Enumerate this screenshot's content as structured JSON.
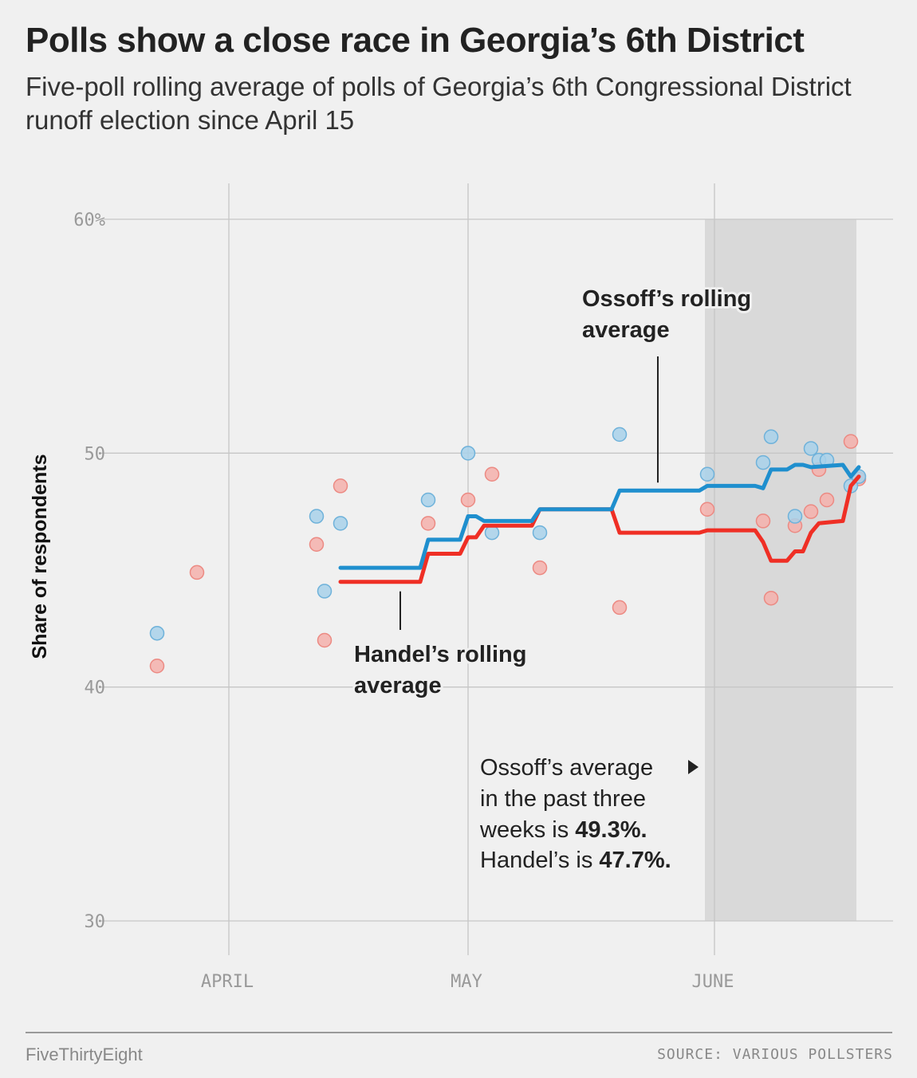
{
  "title": "Polls show a close race in Georgia’s 6th District",
  "subtitle": "Five-poll rolling average of polls of Georgia’s 6th Congressional District runoff election since April 15",
  "footer": {
    "brand": "FiveThirtyEight",
    "source": "SOURCE: VARIOUS POLLSTERS"
  },
  "colors": {
    "ossoff": "#1f8fce",
    "handel": "#ef2f25",
    "ossoff_dot": "#a8d1ea",
    "handel_dot": "#f4b0ab",
    "shade": "#d9d9d9",
    "grid": "#c6c6c6"
  },
  "chart_data": {
    "type": "line",
    "ylabel": "Share of respondents",
    "ylim": [
      30,
      60
    ],
    "y_ticks": [
      {
        "value": 60,
        "label": "60%"
      },
      {
        "value": 50,
        "label": "50"
      },
      {
        "value": 40,
        "label": "40"
      },
      {
        "value": 30,
        "label": "30"
      }
    ],
    "x_ticks": [
      {
        "day": 0,
        "label": "APRIL"
      },
      {
        "day": 30,
        "label": "MAY"
      },
      {
        "day": 61,
        "label": "JUNE"
      }
    ],
    "shaded_region": {
      "from_day": 60,
      "to_day": 79
    },
    "scatter": {
      "ossoff": [
        {
          "day": -9,
          "value": 42.3
        },
        {
          "day": 11,
          "value": 47.3
        },
        {
          "day": 12,
          "value": 44.1
        },
        {
          "day": 14,
          "value": 47.0
        },
        {
          "day": 25,
          "value": 48.0
        },
        {
          "day": 30,
          "value": 50.0
        },
        {
          "day": 33,
          "value": 46.6
        },
        {
          "day": 39,
          "value": 46.6
        },
        {
          "day": 49,
          "value": 50.8
        },
        {
          "day": 60,
          "value": 49.1
        },
        {
          "day": 67,
          "value": 49.6
        },
        {
          "day": 68,
          "value": 50.7
        },
        {
          "day": 71,
          "value": 47.3
        },
        {
          "day": 73,
          "value": 50.2
        },
        {
          "day": 74,
          "value": 49.7
        },
        {
          "day": 75,
          "value": 49.7
        },
        {
          "day": 78,
          "value": 48.6
        },
        {
          "day": 79,
          "value": 49.0
        }
      ],
      "handel": [
        {
          "day": -9,
          "value": 40.9
        },
        {
          "day": -4,
          "value": 44.9
        },
        {
          "day": 11,
          "value": 46.1
        },
        {
          "day": 12,
          "value": 42.0
        },
        {
          "day": 14,
          "value": 48.6
        },
        {
          "day": 25,
          "value": 47.0
        },
        {
          "day": 30,
          "value": 48.0
        },
        {
          "day": 33,
          "value": 49.1
        },
        {
          "day": 39,
          "value": 45.1
        },
        {
          "day": 49,
          "value": 43.4
        },
        {
          "day": 60,
          "value": 47.6
        },
        {
          "day": 67,
          "value": 47.1
        },
        {
          "day": 68,
          "value": 43.8
        },
        {
          "day": 71,
          "value": 46.9
        },
        {
          "day": 73,
          "value": 47.5
        },
        {
          "day": 74,
          "value": 49.3
        },
        {
          "day": 75,
          "value": 48.0
        },
        {
          "day": 78,
          "value": 50.5
        },
        {
          "day": 79,
          "value": 48.9
        }
      ]
    },
    "series": [
      {
        "name": "Ossoff’s rolling average",
        "points": [
          {
            "day": 14,
            "value": 45.1
          },
          {
            "day": 24,
            "value": 45.1
          },
          {
            "day": 25,
            "value": 46.3
          },
          {
            "day": 29,
            "value": 46.3
          },
          {
            "day": 30,
            "value": 47.3
          },
          {
            "day": 31,
            "value": 47.3
          },
          {
            "day": 32,
            "value": 47.1
          },
          {
            "day": 38,
            "value": 47.1
          },
          {
            "day": 39,
            "value": 47.6
          },
          {
            "day": 48,
            "value": 47.6
          },
          {
            "day": 49,
            "value": 48.4
          },
          {
            "day": 59,
            "value": 48.4
          },
          {
            "day": 60,
            "value": 48.6
          },
          {
            "day": 66,
            "value": 48.6
          },
          {
            "day": 67,
            "value": 48.5
          },
          {
            "day": 68,
            "value": 49.3
          },
          {
            "day": 70,
            "value": 49.3
          },
          {
            "day": 71,
            "value": 49.5
          },
          {
            "day": 72,
            "value": 49.5
          },
          {
            "day": 73,
            "value": 49.4
          },
          {
            "day": 77,
            "value": 49.5
          },
          {
            "day": 78,
            "value": 49.0
          },
          {
            "day": 79,
            "value": 49.4
          }
        ]
      },
      {
        "name": "Handel’s rolling average",
        "points": [
          {
            "day": 14,
            "value": 44.5
          },
          {
            "day": 24,
            "value": 44.5
          },
          {
            "day": 25,
            "value": 45.7
          },
          {
            "day": 29,
            "value": 45.7
          },
          {
            "day": 30,
            "value": 46.4
          },
          {
            "day": 31,
            "value": 46.4
          },
          {
            "day": 32,
            "value": 46.9
          },
          {
            "day": 38,
            "value": 46.9
          },
          {
            "day": 39,
            "value": 47.6
          },
          {
            "day": 48,
            "value": 47.6
          },
          {
            "day": 49,
            "value": 46.6
          },
          {
            "day": 59,
            "value": 46.6
          },
          {
            "day": 60,
            "value": 46.7
          },
          {
            "day": 66,
            "value": 46.7
          },
          {
            "day": 67,
            "value": 46.2
          },
          {
            "day": 68,
            "value": 45.4
          },
          {
            "day": 70,
            "value": 45.4
          },
          {
            "day": 71,
            "value": 45.8
          },
          {
            "day": 72,
            "value": 45.8
          },
          {
            "day": 73,
            "value": 46.6
          },
          {
            "day": 74,
            "value": 47.0
          },
          {
            "day": 77,
            "value": 47.1
          },
          {
            "day": 78,
            "value": 48.6
          },
          {
            "day": 79,
            "value": 49.0
          }
        ]
      }
    ],
    "annotations": {
      "ossoff_label": [
        "Ossoff’s rolling",
        "average"
      ],
      "handel_label": [
        "Handel’s rolling",
        "average"
      ],
      "note_line1": "Ossoff’s average",
      "note_line2": "in the past three",
      "note_line3_prefix": "weeks is ",
      "note_line3_value": "49.3%.",
      "note_line4_prefix": "Handel’s is ",
      "note_line4_value": "47.7%."
    }
  }
}
